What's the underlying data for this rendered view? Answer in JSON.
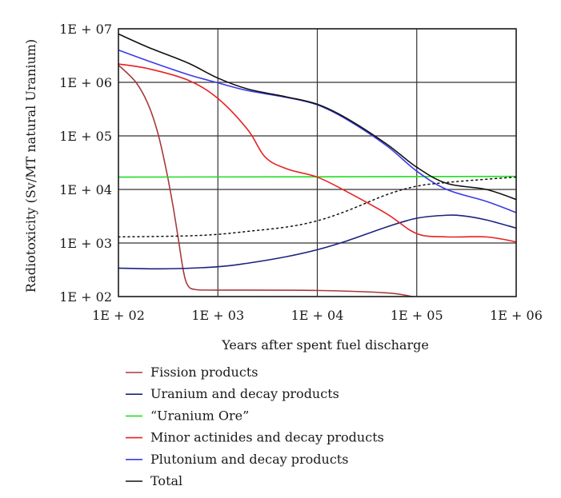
{
  "chart_data": {
    "type": "line",
    "xlabel": "Years after spent fuel discharge",
    "ylabel": "Radiotoxicity (Sv/MT natural Uranium)",
    "x_scale": "log",
    "y_scale": "log",
    "xlim": [
      100,
      1000000
    ],
    "ylim": [
      100,
      10000000
    ],
    "x_ticks": [
      100,
      1000,
      10000,
      100000,
      1000000
    ],
    "y_ticks": [
      100,
      1000,
      10000,
      100000,
      1000000,
      10000000
    ],
    "x_tick_labels": [
      "1E + 02",
      "1E + 03",
      "1E + 04",
      "1E + 05",
      "1E + 06"
    ],
    "y_tick_labels": [
      "1E + 02",
      "1E + 03",
      "1E + 04",
      "1E + 05",
      "1E + 06",
      "1E + 07"
    ],
    "grid": true,
    "legend_position": "below",
    "series": [
      {
        "name": "Fission products",
        "color": "#a83a3a",
        "dashed": false,
        "x": [
          100,
          150,
          200,
          250,
          300,
          350,
          400,
          450,
          500,
          600,
          1000,
          10000,
          50000,
          90000
        ],
        "y": [
          2100000,
          1000000,
          380000,
          110000,
          25000,
          5500,
          1200,
          300,
          160,
          135,
          132,
          130,
          117,
          100
        ]
      },
      {
        "name": "Uranium and decay products",
        "color": "#1a237e",
        "dashed": false,
        "x": [
          100,
          300,
          1000,
          2000,
          5000,
          10000,
          20000,
          50000,
          100000,
          200000,
          300000,
          500000,
          1000000
        ],
        "y": [
          340,
          330,
          360,
          420,
          560,
          750,
          1100,
          2000,
          2900,
          3300,
          3200,
          2700,
          1900
        ]
      },
      {
        "name": "“Uranium Ore”",
        "color": "#22dd22",
        "dashed": false,
        "x": [
          100,
          1000000
        ],
        "y": [
          17000,
          17500
        ]
      },
      {
        "name": "Minor actinides and decay products",
        "color": "#e82020",
        "dashed": false,
        "x": [
          100,
          200,
          500,
          1000,
          2000,
          3000,
          5000,
          10000,
          20000,
          50000,
          100000,
          200000,
          500000,
          1000000
        ],
        "y": [
          2200000,
          1800000,
          1100000,
          500000,
          130000,
          40000,
          24000,
          17000,
          9000,
          3500,
          1500,
          1300,
          1300,
          1050
        ]
      },
      {
        "name": "Plutonium and decay products",
        "color": "#3a3ae8",
        "dashed": false,
        "x": [
          100,
          200,
          500,
          1000,
          2000,
          5000,
          10000,
          20000,
          50000,
          100000,
          200000,
          500000,
          1000000
        ],
        "y": [
          4000000,
          2500000,
          1400000,
          980000,
          700000,
          520000,
          380000,
          200000,
          65000,
          22000,
          10000,
          6000,
          3700
        ]
      },
      {
        "name": "Total",
        "color": "#111111",
        "dashed": false,
        "x": [
          100,
          200,
          500,
          1000,
          2000,
          5000,
          10000,
          20000,
          50000,
          100000,
          200000,
          500000,
          1000000
        ],
        "y": [
          8000000,
          4500000,
          2300000,
          1200000,
          750000,
          530000,
          390000,
          210000,
          70000,
          26000,
          13000,
          10000,
          6500
        ]
      },
      {
        "name": "",
        "color": "#111111",
        "dashed": true,
        "x": [
          100,
          200,
          500,
          1000,
          2000,
          5000,
          10000,
          20000,
          50000,
          100000,
          200000,
          500000,
          1000000
        ],
        "y": [
          1300,
          1320,
          1360,
          1450,
          1650,
          2000,
          2600,
          4000,
          8000,
          11500,
          13500,
          15500,
          17000
        ]
      }
    ]
  }
}
